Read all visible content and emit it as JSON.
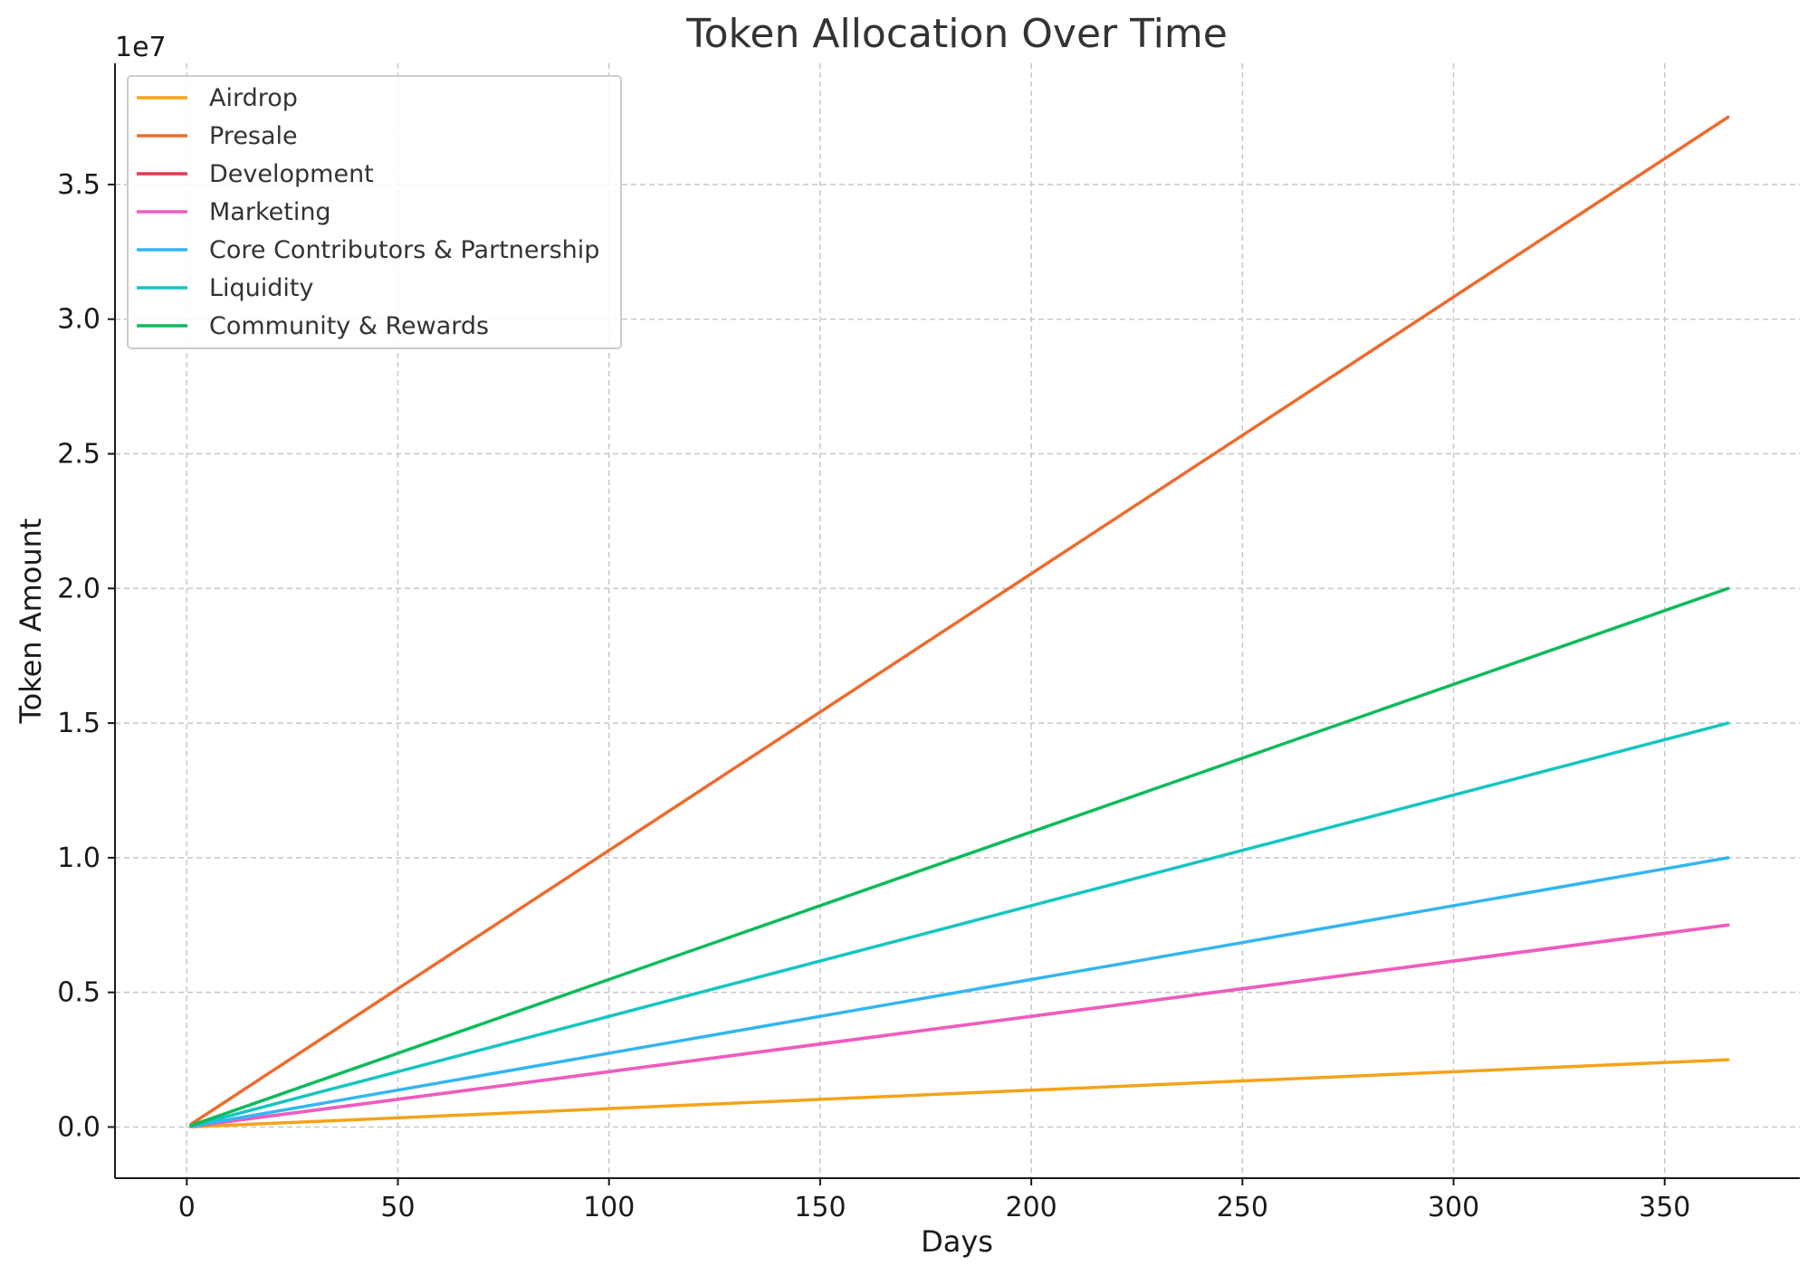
{
  "chart_data": {
    "type": "line",
    "title": "Token Allocation Over Time",
    "xlabel": "Days",
    "ylabel": "Token Amount",
    "y_offset_label": "1e7",
    "xlim": [
      -17,
      382
    ],
    "ylim": [
      -1900000,
      39500000
    ],
    "x_ticks": [
      0,
      50,
      100,
      150,
      200,
      250,
      300,
      350
    ],
    "y_ticks": [
      0,
      5000000,
      10000000,
      15000000,
      20000000,
      25000000,
      30000000,
      35000000
    ],
    "y_tick_labels": [
      "0.0",
      "0.5",
      "1.0",
      "1.5",
      "2.0",
      "2.5",
      "3.0",
      "3.5"
    ],
    "grid": true,
    "legend_position": "top-left",
    "series": [
      {
        "name": "Airdrop",
        "color": "#F5A31A",
        "x": [
          1,
          365
        ],
        "y": [
          6849,
          2500000
        ]
      },
      {
        "name": "Presale",
        "color": "#EE6A2C",
        "x": [
          1,
          365
        ],
        "y": [
          102740,
          37500000
        ]
      },
      {
        "name": "Development",
        "color": "#E8364F",
        "x": [
          1,
          365
        ],
        "y": [
          20548,
          7500000
        ]
      },
      {
        "name": "Marketing",
        "color": "#EE5CC0",
        "x": [
          1,
          365
        ],
        "y": [
          20548,
          7500000
        ]
      },
      {
        "name": "Core Contributors & Partnership",
        "color": "#33B5F2",
        "x": [
          1,
          365
        ],
        "y": [
          27397,
          10000000
        ]
      },
      {
        "name": "Liquidity",
        "color": "#14C6C0",
        "x": [
          1,
          365
        ],
        "y": [
          41096,
          15000000
        ]
      },
      {
        "name": "Community & Rewards",
        "color": "#0DBB5A",
        "x": [
          1,
          365
        ],
        "y": [
          54795,
          20000000
        ]
      }
    ]
  }
}
